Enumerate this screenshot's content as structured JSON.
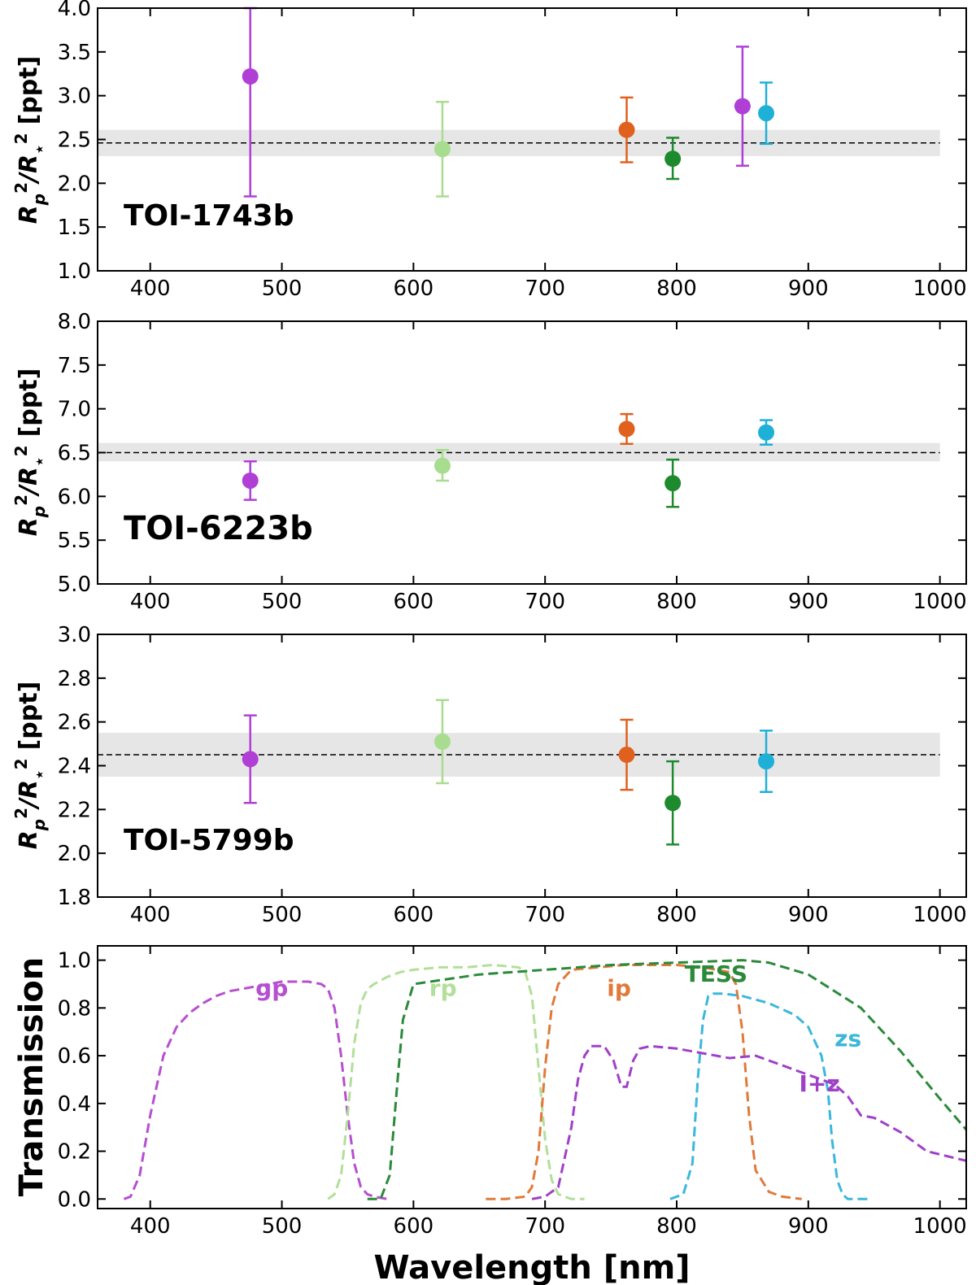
{
  "chart_data": [
    {
      "type": "scatter",
      "planet": "TOI-1743b",
      "ylabel_main": "R",
      "ylabel_sub1": "p",
      "ylabel_sup1": "2",
      "ylabel_mid": "/R",
      "ylabel_sub2": "⋆",
      "ylabel_sup2": "2",
      "ylabel_unit": "[ppt]",
      "xlim": [
        360,
        1020
      ],
      "ylim": [
        1.0,
        4.0
      ],
      "xticks": [
        "400",
        "500",
        "600",
        "700",
        "800",
        "900",
        "1000"
      ],
      "yticks": [
        "1.0",
        "1.5",
        "2.0",
        "2.5",
        "3.0",
        "3.5",
        "4.0"
      ],
      "mean": 2.46,
      "band": [
        2.31,
        2.61
      ],
      "points": [
        {
          "x": 476,
          "y": 3.22,
          "lo": 1.85,
          "hi": 4.0,
          "color": "#b03fd6"
        },
        {
          "x": 622,
          "y": 2.39,
          "lo": 1.85,
          "hi": 2.93,
          "color": "#a8dd8f"
        },
        {
          "x": 762,
          "y": 2.61,
          "lo": 2.24,
          "hi": 2.98,
          "color": "#e0601e"
        },
        {
          "x": 797,
          "y": 2.28,
          "lo": 2.05,
          "hi": 2.52,
          "color": "#1e8a2e"
        },
        {
          "x": 850,
          "y": 2.88,
          "lo": 2.2,
          "hi": 3.56,
          "color": "#b03fd6"
        },
        {
          "x": 868,
          "y": 2.8,
          "lo": 2.45,
          "hi": 3.15,
          "color": "#1fb0d8"
        }
      ]
    },
    {
      "type": "scatter",
      "planet": "TOI-6223b",
      "ylabel_main": "R",
      "ylabel_sub1": "p",
      "ylabel_sup1": "2",
      "ylabel_mid": "/R",
      "ylabel_sub2": "⋆",
      "ylabel_sup2": "2",
      "ylabel_unit": "[ppt]",
      "xlim": [
        360,
        1020
      ],
      "ylim": [
        5.0,
        8.0
      ],
      "xticks": [
        "400",
        "500",
        "600",
        "700",
        "800",
        "900",
        "1000"
      ],
      "yticks": [
        "5.0",
        "5.5",
        "6.0",
        "6.5",
        "7.0",
        "7.5",
        "8.0"
      ],
      "mean": 6.5,
      "band": [
        6.4,
        6.61
      ],
      "points": [
        {
          "x": 476,
          "y": 6.18,
          "lo": 5.96,
          "hi": 6.4,
          "color": "#b03fd6"
        },
        {
          "x": 622,
          "y": 6.35,
          "lo": 6.18,
          "hi": 6.53,
          "color": "#a8dd8f"
        },
        {
          "x": 762,
          "y": 6.77,
          "lo": 6.6,
          "hi": 6.94,
          "color": "#e0601e"
        },
        {
          "x": 797,
          "y": 6.15,
          "lo": 5.88,
          "hi": 6.42,
          "color": "#1e8a2e"
        },
        {
          "x": 868,
          "y": 6.73,
          "lo": 6.59,
          "hi": 6.87,
          "color": "#1fb0d8"
        }
      ]
    },
    {
      "type": "scatter",
      "planet": "TOI-5799b",
      "ylabel_main": "R",
      "ylabel_sub1": "p",
      "ylabel_sup1": "2",
      "ylabel_mid": "/R",
      "ylabel_sub2": "⋆",
      "ylabel_sup2": "2",
      "ylabel_unit": "[ppt]",
      "xlim": [
        360,
        1020
      ],
      "ylim": [
        1.8,
        3.0
      ],
      "xticks": [
        "400",
        "500",
        "600",
        "700",
        "800",
        "900",
        "1000"
      ],
      "yticks": [
        "1.8",
        "2.0",
        "2.2",
        "2.4",
        "2.6",
        "2.8",
        "3.0"
      ],
      "mean": 2.45,
      "band": [
        2.35,
        2.55
      ],
      "points": [
        {
          "x": 476,
          "y": 2.43,
          "lo": 2.23,
          "hi": 2.63,
          "color": "#b03fd6"
        },
        {
          "x": 622,
          "y": 2.51,
          "lo": 2.32,
          "hi": 2.7,
          "color": "#a8dd8f"
        },
        {
          "x": 762,
          "y": 2.45,
          "lo": 2.29,
          "hi": 2.61,
          "color": "#e0601e"
        },
        {
          "x": 797,
          "y": 2.23,
          "lo": 2.04,
          "hi": 2.42,
          "color": "#1e8a2e"
        },
        {
          "x": 868,
          "y": 2.42,
          "lo": 2.28,
          "hi": 2.56,
          "color": "#1fb0d8"
        }
      ]
    },
    {
      "type": "line",
      "ylabel": "Transmission",
      "xlabel": "Wavelength [nm]",
      "xlim": [
        360,
        1020
      ],
      "ylim": [
        -0.04,
        1.06
      ],
      "xticks": [
        "400",
        "500",
        "600",
        "700",
        "800",
        "900",
        "1000"
      ],
      "yticks": [
        "0.0",
        "0.2",
        "0.4",
        "0.6",
        "0.8",
        "1.0"
      ],
      "series": [
        {
          "name": "gp",
          "color": "#b64fd0",
          "label_x": 480,
          "label_y": 0.85,
          "x": [
            380,
            385,
            392,
            400,
            410,
            420,
            430,
            440,
            450,
            460,
            470,
            480,
            490,
            500,
            510,
            520,
            530,
            535,
            540,
            545,
            550,
            555,
            560,
            565,
            570,
            580
          ],
          "y": [
            0.0,
            0.01,
            0.1,
            0.35,
            0.6,
            0.72,
            0.78,
            0.82,
            0.85,
            0.87,
            0.88,
            0.89,
            0.9,
            0.91,
            0.91,
            0.91,
            0.9,
            0.88,
            0.8,
            0.6,
            0.35,
            0.15,
            0.05,
            0.02,
            0.01,
            0.0
          ]
        },
        {
          "name": "rp",
          "color": "#b2df9a",
          "label_x": 612,
          "label_y": 0.85,
          "x": [
            535,
            540,
            545,
            550,
            555,
            560,
            565,
            570,
            580,
            590,
            600,
            620,
            640,
            660,
            680,
            685,
            690,
            695,
            700,
            705,
            710,
            720,
            730
          ],
          "y": [
            0.0,
            0.02,
            0.1,
            0.35,
            0.65,
            0.82,
            0.88,
            0.9,
            0.93,
            0.95,
            0.96,
            0.97,
            0.97,
            0.98,
            0.97,
            0.95,
            0.85,
            0.55,
            0.25,
            0.08,
            0.02,
            0.0,
            0.0
          ]
        },
        {
          "name": "ip",
          "color": "#e07a3a",
          "label_x": 747,
          "label_y": 0.85,
          "x": [
            655,
            670,
            685,
            690,
            695,
            700,
            705,
            710,
            720,
            740,
            760,
            780,
            800,
            820,
            840,
            845,
            850,
            855,
            860,
            870,
            880,
            895
          ],
          "y": [
            0.0,
            0.0,
            0.01,
            0.05,
            0.2,
            0.55,
            0.8,
            0.9,
            0.96,
            0.97,
            0.98,
            0.98,
            0.98,
            0.97,
            0.95,
            0.9,
            0.7,
            0.35,
            0.12,
            0.03,
            0.01,
            0.0
          ]
        },
        {
          "name": "zs",
          "color": "#3bb7dc",
          "label_x": 920,
          "label_y": 0.64,
          "x": [
            795,
            805,
            812,
            816,
            820,
            824,
            828,
            835,
            850,
            870,
            890,
            900,
            905,
            910,
            915,
            918,
            922,
            926,
            930,
            935,
            945
          ],
          "y": [
            0.0,
            0.02,
            0.15,
            0.5,
            0.75,
            0.85,
            0.86,
            0.86,
            0.85,
            0.82,
            0.77,
            0.72,
            0.66,
            0.6,
            0.45,
            0.25,
            0.08,
            0.02,
            0.0,
            0.0,
            0.0
          ]
        },
        {
          "name": "I+z",
          "color": "#a040c8",
          "label_x": 893,
          "label_y": 0.45,
          "x": [
            690,
            700,
            710,
            720,
            725,
            730,
            735,
            745,
            752,
            758,
            762,
            767,
            772,
            780,
            800,
            820,
            840,
            860,
            880,
            900,
            920,
            930,
            940,
            950,
            970,
            990,
            1020
          ],
          "y": [
            0.0,
            0.01,
            0.05,
            0.3,
            0.5,
            0.6,
            0.64,
            0.64,
            0.58,
            0.47,
            0.47,
            0.58,
            0.63,
            0.64,
            0.63,
            0.61,
            0.59,
            0.6,
            0.56,
            0.52,
            0.48,
            0.43,
            0.35,
            0.34,
            0.28,
            0.2,
            0.16
          ]
        },
        {
          "name": "TESS",
          "color": "#2a8a3a",
          "label_x": 806,
          "label_y": 0.91,
          "x": [
            565,
            575,
            582,
            588,
            592,
            600,
            650,
            700,
            750,
            800,
            850,
            870,
            900,
            940,
            970,
            1000,
            1020
          ],
          "y": [
            0.0,
            0.0,
            0.1,
            0.5,
            0.75,
            0.9,
            0.94,
            0.96,
            0.98,
            0.99,
            1.0,
            0.99,
            0.94,
            0.8,
            0.62,
            0.42,
            0.29
          ]
        }
      ]
    }
  ]
}
